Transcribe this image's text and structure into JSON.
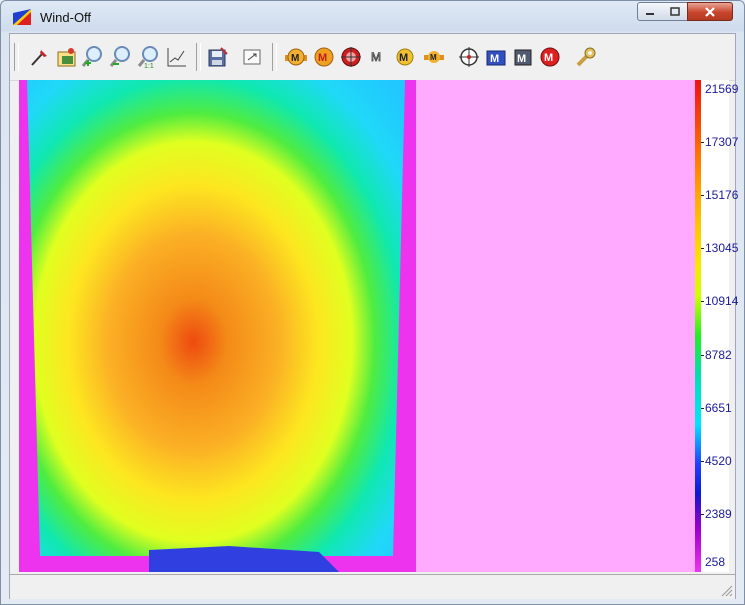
{
  "window": {
    "title": "Wind-Off",
    "buttons": [
      "minimize",
      "maximize",
      "close"
    ]
  },
  "toolbar": {
    "icons": [
      "eyedropper-icon",
      "image-open-icon",
      "zoom-in-icon",
      "zoom-out-icon",
      "zoom-actual-icon",
      "line-chart-icon",
      "save-icon",
      "fit-window-icon",
      "marker-left-icon",
      "marker-icon",
      "marker-target-icon",
      "marker-outline-icon",
      "marker-yellow-icon",
      "marker-small-icon",
      "crosshair-icon",
      "marker-blue-icon",
      "marker-dark-icon",
      "marker-red-circle-icon",
      "wrench-icon"
    ]
  },
  "image_view": {
    "left_pane": "heatmap",
    "right_pane_color": "#ffaaff"
  },
  "colorbar": {
    "ticks": [
      "21569",
      "17307",
      "15176",
      "13045",
      "10914",
      "8782",
      "6651",
      "4520",
      "2389",
      "258"
    ],
    "colors": {
      "max": "#ee1111",
      "high": "#ff9a00",
      "mid_high": "#ffe400",
      "mid": "#22ee22",
      "mid_low": "#00e5ff",
      "low": "#2040ff",
      "min": "#ee33ee"
    }
  },
  "chart_data": {
    "type": "heatmap",
    "title": "",
    "xlabel": "",
    "ylabel": "",
    "color_scale_min": 258,
    "color_scale_max": 21569,
    "tick_values": [
      21569,
      17307,
      15176,
      13045,
      10914,
      8782,
      6651,
      4520,
      2389,
      258
    ]
  }
}
